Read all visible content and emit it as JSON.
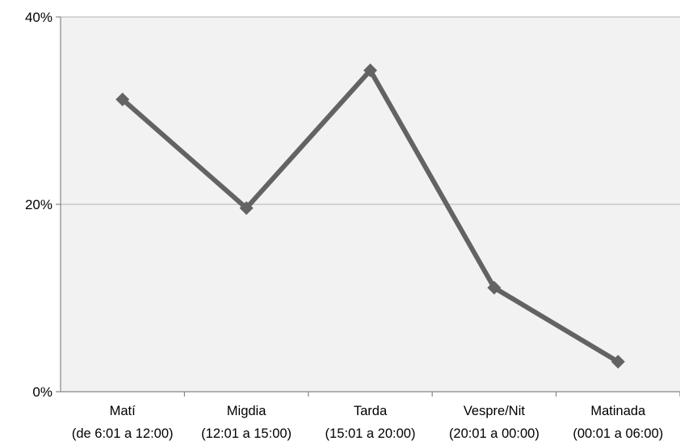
{
  "chart_data": {
    "type": "line",
    "categories": [
      {
        "name": "Matí",
        "range": "(de 6:01 a 12:00)"
      },
      {
        "name": "Migdia",
        "range": "(12:01 a 15:00)"
      },
      {
        "name": "Tarda",
        "range": "(15:01 a 20:00)"
      },
      {
        "name": "Vespre/Nit",
        "range": "(20:01 a 00:00)"
      },
      {
        "name": "Matinada",
        "range": "(00:01 a 06:00)"
      }
    ],
    "series": [
      {
        "values": [
          31.2,
          19.6,
          34.3,
          11.1,
          3.2
        ]
      }
    ],
    "ylim": [
      0,
      40
    ],
    "yticks": [
      {
        "value": 0,
        "label": "0%"
      },
      {
        "value": 20,
        "label": "20%"
      },
      {
        "value": 40,
        "label": "40%"
      }
    ],
    "grid": true,
    "colors": {
      "line": "#636363",
      "plot_background": "#f2f2f2",
      "gridline": "#bfbfbf",
      "axis": "#868686"
    }
  }
}
